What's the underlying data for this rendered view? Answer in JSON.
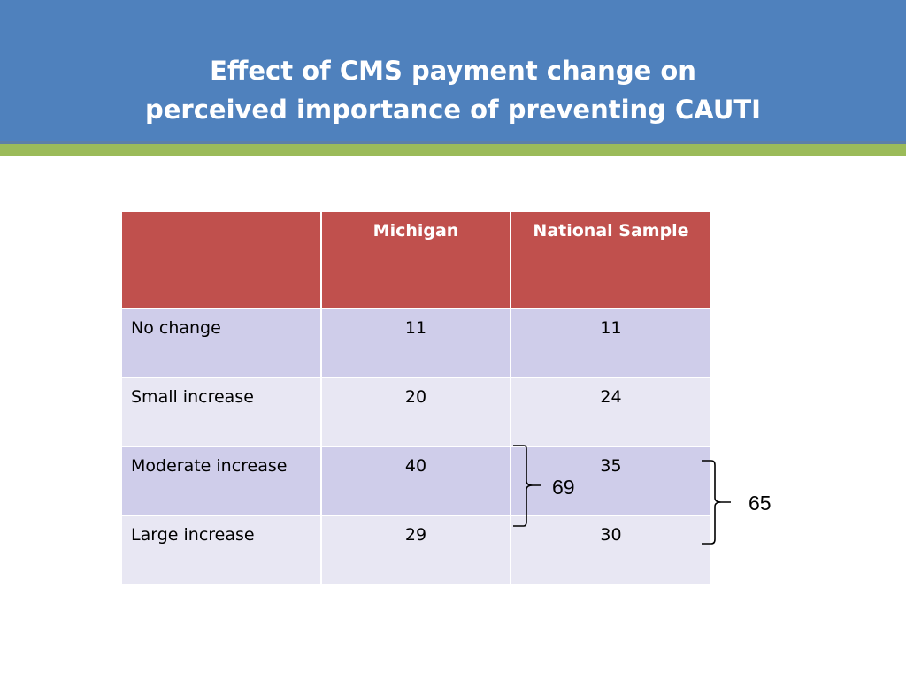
{
  "slide": {
    "title_line1": "Effect of CMS payment change on",
    "title_line2": "perceived importance of preventing CAUTI"
  },
  "table": {
    "headers": [
      "",
      "Michigan",
      "National Sample"
    ],
    "rows": [
      {
        "label": "No change",
        "michigan": "11",
        "national": "11"
      },
      {
        "label": "Small increase",
        "michigan": "20",
        "national": "24"
      },
      {
        "label": "Moderate increase",
        "michigan": "40",
        "national": "35"
      },
      {
        "label": "Large increase",
        "michigan": "29",
        "national": "30"
      }
    ]
  },
  "annotations": {
    "michigan_sum": "69",
    "national_sum": "65"
  },
  "colors": {
    "header_band": "#4f81bd",
    "accent_green": "#9bbb59",
    "table_header": "#c0504d",
    "row_dark": "#cfcdea",
    "row_light": "#e8e7f3"
  }
}
